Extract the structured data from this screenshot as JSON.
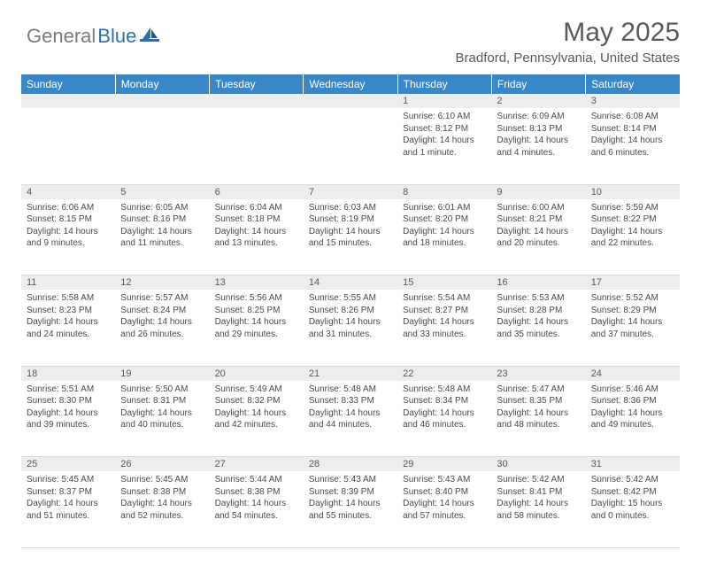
{
  "brand": {
    "general": "General",
    "blue": "Blue"
  },
  "header": {
    "month_title": "May 2025",
    "location": "Bradford, Pennsylvania, United States"
  },
  "colors": {
    "header_bg": "#3a87c7",
    "header_text": "#ffffff",
    "daynum_bg": "#ededed",
    "body_text": "#4a4a4a",
    "title_text": "#595959",
    "logo_gray": "#7a7a7a",
    "logo_blue": "#2f6fb0",
    "row_divider": "#d9d9d9"
  },
  "day_headers": [
    "Sunday",
    "Monday",
    "Tuesday",
    "Wednesday",
    "Thursday",
    "Friday",
    "Saturday"
  ],
  "weeks": [
    [
      {
        "n": "",
        "sunrise": "",
        "sunset": "",
        "daylight": ""
      },
      {
        "n": "",
        "sunrise": "",
        "sunset": "",
        "daylight": ""
      },
      {
        "n": "",
        "sunrise": "",
        "sunset": "",
        "daylight": ""
      },
      {
        "n": "",
        "sunrise": "",
        "sunset": "",
        "daylight": ""
      },
      {
        "n": "1",
        "sunrise": "Sunrise: 6:10 AM",
        "sunset": "Sunset: 8:12 PM",
        "daylight": "Daylight: 14 hours and 1 minute."
      },
      {
        "n": "2",
        "sunrise": "Sunrise: 6:09 AM",
        "sunset": "Sunset: 8:13 PM",
        "daylight": "Daylight: 14 hours and 4 minutes."
      },
      {
        "n": "3",
        "sunrise": "Sunrise: 6:08 AM",
        "sunset": "Sunset: 8:14 PM",
        "daylight": "Daylight: 14 hours and 6 minutes."
      }
    ],
    [
      {
        "n": "4",
        "sunrise": "Sunrise: 6:06 AM",
        "sunset": "Sunset: 8:15 PM",
        "daylight": "Daylight: 14 hours and 9 minutes."
      },
      {
        "n": "5",
        "sunrise": "Sunrise: 6:05 AM",
        "sunset": "Sunset: 8:16 PM",
        "daylight": "Daylight: 14 hours and 11 minutes."
      },
      {
        "n": "6",
        "sunrise": "Sunrise: 6:04 AM",
        "sunset": "Sunset: 8:18 PM",
        "daylight": "Daylight: 14 hours and 13 minutes."
      },
      {
        "n": "7",
        "sunrise": "Sunrise: 6:03 AM",
        "sunset": "Sunset: 8:19 PM",
        "daylight": "Daylight: 14 hours and 15 minutes."
      },
      {
        "n": "8",
        "sunrise": "Sunrise: 6:01 AM",
        "sunset": "Sunset: 8:20 PM",
        "daylight": "Daylight: 14 hours and 18 minutes."
      },
      {
        "n": "9",
        "sunrise": "Sunrise: 6:00 AM",
        "sunset": "Sunset: 8:21 PM",
        "daylight": "Daylight: 14 hours and 20 minutes."
      },
      {
        "n": "10",
        "sunrise": "Sunrise: 5:59 AM",
        "sunset": "Sunset: 8:22 PM",
        "daylight": "Daylight: 14 hours and 22 minutes."
      }
    ],
    [
      {
        "n": "11",
        "sunrise": "Sunrise: 5:58 AM",
        "sunset": "Sunset: 8:23 PM",
        "daylight": "Daylight: 14 hours and 24 minutes."
      },
      {
        "n": "12",
        "sunrise": "Sunrise: 5:57 AM",
        "sunset": "Sunset: 8:24 PM",
        "daylight": "Daylight: 14 hours and 26 minutes."
      },
      {
        "n": "13",
        "sunrise": "Sunrise: 5:56 AM",
        "sunset": "Sunset: 8:25 PM",
        "daylight": "Daylight: 14 hours and 29 minutes."
      },
      {
        "n": "14",
        "sunrise": "Sunrise: 5:55 AM",
        "sunset": "Sunset: 8:26 PM",
        "daylight": "Daylight: 14 hours and 31 minutes."
      },
      {
        "n": "15",
        "sunrise": "Sunrise: 5:54 AM",
        "sunset": "Sunset: 8:27 PM",
        "daylight": "Daylight: 14 hours and 33 minutes."
      },
      {
        "n": "16",
        "sunrise": "Sunrise: 5:53 AM",
        "sunset": "Sunset: 8:28 PM",
        "daylight": "Daylight: 14 hours and 35 minutes."
      },
      {
        "n": "17",
        "sunrise": "Sunrise: 5:52 AM",
        "sunset": "Sunset: 8:29 PM",
        "daylight": "Daylight: 14 hours and 37 minutes."
      }
    ],
    [
      {
        "n": "18",
        "sunrise": "Sunrise: 5:51 AM",
        "sunset": "Sunset: 8:30 PM",
        "daylight": "Daylight: 14 hours and 39 minutes."
      },
      {
        "n": "19",
        "sunrise": "Sunrise: 5:50 AM",
        "sunset": "Sunset: 8:31 PM",
        "daylight": "Daylight: 14 hours and 40 minutes."
      },
      {
        "n": "20",
        "sunrise": "Sunrise: 5:49 AM",
        "sunset": "Sunset: 8:32 PM",
        "daylight": "Daylight: 14 hours and 42 minutes."
      },
      {
        "n": "21",
        "sunrise": "Sunrise: 5:48 AM",
        "sunset": "Sunset: 8:33 PM",
        "daylight": "Daylight: 14 hours and 44 minutes."
      },
      {
        "n": "22",
        "sunrise": "Sunrise: 5:48 AM",
        "sunset": "Sunset: 8:34 PM",
        "daylight": "Daylight: 14 hours and 46 minutes."
      },
      {
        "n": "23",
        "sunrise": "Sunrise: 5:47 AM",
        "sunset": "Sunset: 8:35 PM",
        "daylight": "Daylight: 14 hours and 48 minutes."
      },
      {
        "n": "24",
        "sunrise": "Sunrise: 5:46 AM",
        "sunset": "Sunset: 8:36 PM",
        "daylight": "Daylight: 14 hours and 49 minutes."
      }
    ],
    [
      {
        "n": "25",
        "sunrise": "Sunrise: 5:45 AM",
        "sunset": "Sunset: 8:37 PM",
        "daylight": "Daylight: 14 hours and 51 minutes."
      },
      {
        "n": "26",
        "sunrise": "Sunrise: 5:45 AM",
        "sunset": "Sunset: 8:38 PM",
        "daylight": "Daylight: 14 hours and 52 minutes."
      },
      {
        "n": "27",
        "sunrise": "Sunrise: 5:44 AM",
        "sunset": "Sunset: 8:38 PM",
        "daylight": "Daylight: 14 hours and 54 minutes."
      },
      {
        "n": "28",
        "sunrise": "Sunrise: 5:43 AM",
        "sunset": "Sunset: 8:39 PM",
        "daylight": "Daylight: 14 hours and 55 minutes."
      },
      {
        "n": "29",
        "sunrise": "Sunrise: 5:43 AM",
        "sunset": "Sunset: 8:40 PM",
        "daylight": "Daylight: 14 hours and 57 minutes."
      },
      {
        "n": "30",
        "sunrise": "Sunrise: 5:42 AM",
        "sunset": "Sunset: 8:41 PM",
        "daylight": "Daylight: 14 hours and 58 minutes."
      },
      {
        "n": "31",
        "sunrise": "Sunrise: 5:42 AM",
        "sunset": "Sunset: 8:42 PM",
        "daylight": "Daylight: 15 hours and 0 minutes."
      }
    ]
  ]
}
